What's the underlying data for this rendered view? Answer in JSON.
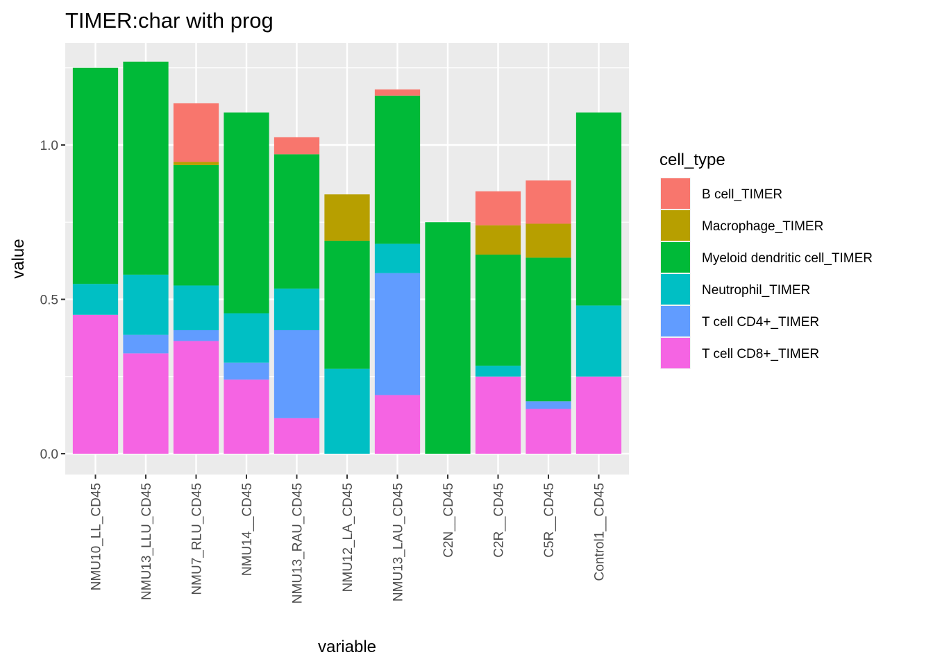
{
  "chart_data": {
    "type": "bar",
    "stacked": true,
    "title": "TIMER:char with prog",
    "xlabel": "variable",
    "ylabel": "value",
    "ylim": [
      -0.06,
      1.3
    ],
    "yticks": [
      0.0,
      0.5,
      1.0
    ],
    "ytick_labels": [
      "0.0",
      "0.5",
      "1.0"
    ],
    "grid": true,
    "legend_position": "right",
    "legend_title": "cell_type",
    "categories": [
      "NMU10_LL_CD45",
      "NMU13_LLU_CD45",
      "NMU7_RLU_CD45",
      "NMU14__CD45",
      "NMU13_RAU_CD45",
      "NMU12_LA_CD45",
      "NMU13_LAU_CD45",
      "C2N__CD45",
      "C2R__CD45",
      "C5R__CD45",
      "Control1__CD45"
    ],
    "series": [
      {
        "name": "B cell_TIMER",
        "color": "#F8766D",
        "values": [
          0,
          0,
          0.19,
          0,
          0.055,
          0,
          0.02,
          0,
          0.11,
          0.14,
          0
        ]
      },
      {
        "name": "Macrophage_TIMER",
        "color": "#B79F00",
        "values": [
          0,
          0,
          0.01,
          0,
          0,
          0.15,
          0,
          0,
          0.095,
          0.11,
          0
        ]
      },
      {
        "name": "Myeloid dendritic cell_TIMER",
        "color": "#00BA38",
        "values": [
          0.7,
          0.69,
          0.39,
          0.65,
          0.435,
          0.415,
          0.48,
          0.75,
          0.36,
          0.465,
          0.625
        ]
      },
      {
        "name": "Neutrophil_TIMER",
        "color": "#00BFC4",
        "values": [
          0.1,
          0.195,
          0.145,
          0.16,
          0.135,
          0.275,
          0.095,
          0,
          0.035,
          0,
          0.23
        ]
      },
      {
        "name": "T cell CD4+_TIMER",
        "color": "#619CFF",
        "values": [
          0,
          0.06,
          0.035,
          0.055,
          0.285,
          0,
          0.395,
          0,
          0,
          0.025,
          0
        ]
      },
      {
        "name": "T cell CD8+_TIMER",
        "color": "#F564E3",
        "values": [
          0.45,
          0.325,
          0.365,
          0.24,
          0.115,
          0,
          0.19,
          0,
          0.25,
          0.145,
          0.25
        ]
      }
    ],
    "colors": {
      "panel_background": "#EBEBEB",
      "grid_line": "#FFFFFF",
      "tick_mark": "#333333"
    }
  }
}
